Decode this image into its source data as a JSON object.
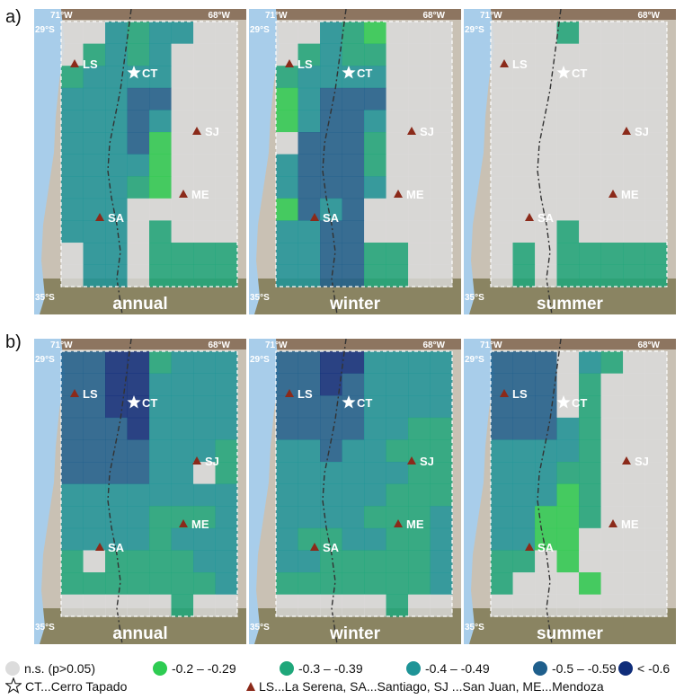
{
  "row_labels": [
    "a)",
    "b)"
  ],
  "panels": [
    {
      "row": 0,
      "col": 0,
      "season": "annual",
      "grid": [
        "00323300",
        "02323000",
        "23333000",
        "33344000",
        "33343000",
        "33341000",
        "33331000",
        "33321000",
        "33300000",
        "33302000",
        "03302222",
        "03302222"
      ]
    },
    {
      "row": 0,
      "col": 1,
      "season": "winter",
      "grid": [
        "00321000",
        "02322000",
        "23333000",
        "13444000",
        "13443000",
        "04442000",
        "34442000",
        "34443000",
        "14340000",
        "33440000",
        "33442200",
        "33442200"
      ]
    },
    {
      "row": 0,
      "col": 2,
      "season": "summer",
      "grid": [
        "00020000",
        "00000000",
        "00000000",
        "00000000",
        "00000000",
        "00000000",
        "00000000",
        "00000000",
        "00000000",
        "00020000",
        "02022222",
        "02022222"
      ]
    },
    {
      "row": 1,
      "col": 0,
      "season": "annual",
      "grid": [
        "44552333",
        "44553333",
        "44553333",
        "44453333",
        "44443332",
        "44443302",
        "33333333",
        "33332223",
        "33332333",
        "20222233",
        "22222223",
        "00000200"
      ]
    },
    {
      "row": 1,
      "col": 1,
      "season": "winter",
      "grid": [
        "44553333",
        "44543333",
        "44443333",
        "44443322",
        "33433222",
        "33333322",
        "33333222",
        "33332223",
        "32233223",
        "33222223",
        "22222223",
        "00000200"
      ]
    },
    {
      "row": 1,
      "col": 2,
      "season": "summer",
      "grid": [
        "44403200",
        "44402000",
        "44402000",
        "44432000",
        "33332000",
        "33322000",
        "33312000",
        "33112000",
        "33110000",
        "22010000",
        "20001000",
        "00000000"
      ]
    }
  ],
  "map_labels": {
    "lon_west": "71°W",
    "lon_east": "68°W",
    "lat_north": "29°S",
    "lat_south": "35°S"
  },
  "cities": [
    {
      "code": "CT",
      "symbol": "star"
    },
    {
      "code": "LS",
      "symbol": "triangle"
    },
    {
      "code": "SJ",
      "symbol": "triangle"
    },
    {
      "code": "ME",
      "symbol": "triangle"
    },
    {
      "code": "SA",
      "symbol": "triangle"
    }
  ],
  "legend": {
    "classes": [
      {
        "label": "n.s. (p>0.05)",
        "color": "#dcdcdc"
      },
      {
        "label": "-0.2 – -0.29",
        "color": "#2ecc52"
      },
      {
        "label": "-0.3 – -0.39",
        "color": "#1fa77a"
      },
      {
        "label": "-0.4 – -0.49",
        "color": "#1e9497"
      },
      {
        "label": "-0.5 – -0.59",
        "color": "#1f5f8c"
      },
      {
        "label": "< -0.6",
        "color": "#0f2d7a"
      }
    ],
    "ct_text": "CT...Cerro Tapado",
    "stations_text": "LS...La Serena, SA...Santiago, SJ ...San Juan, ME...Mendoza"
  },
  "colors": {
    "ocean": "#a8cdea",
    "terrain": "#c9c1b4",
    "terrain_south": "#8a8462",
    "triangle": "#8b2a1a"
  }
}
